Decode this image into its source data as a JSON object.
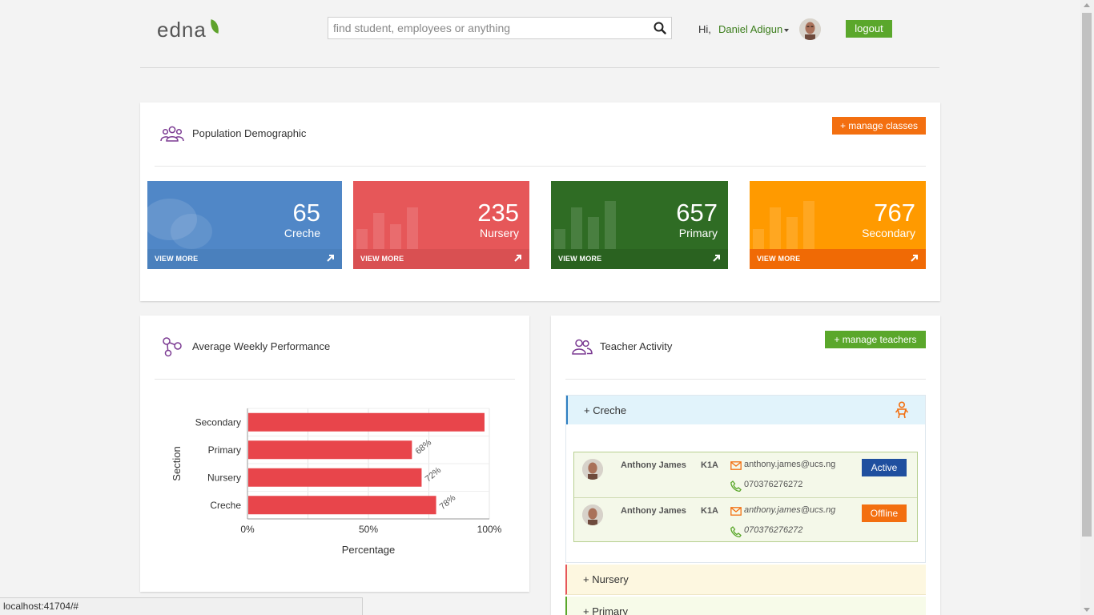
{
  "header": {
    "logo": "edna",
    "search_placeholder": "find student, employees or anything",
    "greeting": "Hi,",
    "user_name": "Daniel Adigun",
    "logout_label": "logout"
  },
  "demographic": {
    "title": "Population Demographic",
    "manage_label": "+ manage classes",
    "cards": [
      {
        "value": "65",
        "label": "Creche",
        "footer": "VIEW MORE",
        "color": "#5087c7",
        "footer_color": "#4a80bd"
      },
      {
        "value": "235",
        "label": "Nursery",
        "footer": "VIEW MORE",
        "color": "#e65759",
        "footer_color": "#d95052"
      },
      {
        "value": "657",
        "label": "Primary",
        "footer": "VIEW MORE",
        "color": "#2f6c24",
        "footer_color": "#2a6220"
      },
      {
        "value": "767",
        "label": "Secondary",
        "footer": "VIEW MORE",
        "color": "#ff9a00",
        "footer_color": "#f06a05"
      }
    ]
  },
  "performance": {
    "title": "Average Weekly Performance"
  },
  "chart_data": {
    "type": "bar",
    "orientation": "horizontal",
    "categories": [
      "Secondary",
      "Primary",
      "Nursery",
      "Creche"
    ],
    "values": [
      98,
      68,
      72,
      78
    ],
    "data_labels": [
      "",
      "68%",
      "72%",
      "78%"
    ],
    "xlabel": "Percentage",
    "ylabel": "Section",
    "xlim": [
      0,
      100
    ],
    "ticks": [
      "0%",
      "50%",
      "100%"
    ],
    "bar_color": "#e8454b",
    "grid": true
  },
  "teachers": {
    "title": "Teacher Activity",
    "manage_label": "+ manage teachers",
    "sections": [
      {
        "label": "+ Creche",
        "icon": "baby-icon"
      },
      {
        "label": "+ Nursery"
      },
      {
        "label": "+ Primary"
      }
    ],
    "rows": [
      {
        "name": "Anthony James",
        "class": "K1A",
        "email": "anthony.james@ucs.ng",
        "phone": "070376276272",
        "status": "Active",
        "status_color": "#1f4f9f"
      },
      {
        "name": "Anthony James",
        "class": "K1A",
        "email": "anthony.james@ucs.ng",
        "phone": "070376276272",
        "status": "Offline",
        "status_color": "#f36f10"
      }
    ]
  },
  "statusbar": {
    "url": "localhost:41704/#"
  }
}
